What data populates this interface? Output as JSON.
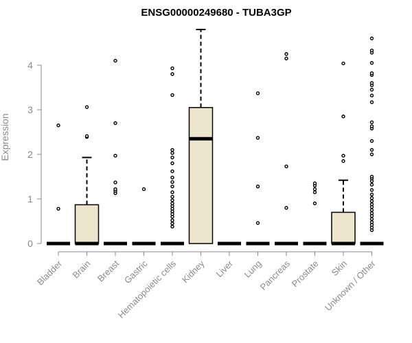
{
  "chart_data": {
    "type": "boxplot",
    "title": "ENSG00000249680 - TUBA3GP",
    "xlabel": "",
    "ylabel": "Expression",
    "ylim": [
      0,
      4.8
    ],
    "yticks": [
      0,
      1,
      2,
      3,
      4
    ],
    "box_fill": "#ede6cc",
    "grid": false,
    "categories": [
      "Bladder",
      "Brain",
      "Breast",
      "Gastric",
      "Hematopoietic cells",
      "Kidney",
      "Liver",
      "Lung",
      "Pancreas",
      "Prostate",
      "Skin",
      "Unknown / Other"
    ],
    "boxes": [
      {
        "q1": 0,
        "median": 0,
        "q3": 0,
        "whisker_low": 0,
        "whisker_high": 0,
        "outliers": [
          0.78,
          2.65
        ]
      },
      {
        "q1": 0,
        "median": 0,
        "q3": 0.87,
        "whisker_low": 0,
        "whisker_high": 1.93,
        "outliers": [
          2.39,
          2.41,
          3.06
        ]
      },
      {
        "q1": 0,
        "median": 0,
        "q3": 0,
        "whisker_low": 0,
        "whisker_high": 0,
        "outliers": [
          1.13,
          1.18,
          1.22,
          1.37,
          1.97,
          2.7,
          4.1
        ]
      },
      {
        "q1": 0,
        "median": 0,
        "q3": 0,
        "whisker_low": 0,
        "whisker_high": 0,
        "outliers": [
          1.22
        ]
      },
      {
        "q1": 0,
        "median": 0,
        "q3": 0,
        "whisker_low": 0,
        "whisker_high": 0,
        "outliers": [
          0.38,
          0.45,
          0.52,
          0.6,
          0.66,
          0.72,
          0.78,
          0.84,
          0.9,
          0.97,
          1.05,
          1.15,
          1.28,
          1.38,
          1.48,
          1.62,
          1.8,
          1.93,
          2.03,
          2.1,
          3.33,
          3.8,
          3.93
        ]
      },
      {
        "q1": 0,
        "median": 2.35,
        "q3": 3.05,
        "whisker_low": 0,
        "whisker_high": 4.8,
        "outliers": []
      },
      {
        "q1": 0,
        "median": 0,
        "q3": 0,
        "whisker_low": 0,
        "whisker_high": 0,
        "outliers": []
      },
      {
        "q1": 0,
        "median": 0,
        "q3": 0,
        "whisker_low": 0,
        "whisker_high": 0,
        "outliers": [
          0.46,
          1.28,
          2.37,
          3.37
        ]
      },
      {
        "q1": 0,
        "median": 0,
        "q3": 0,
        "whisker_low": 0,
        "whisker_high": 0,
        "outliers": [
          0.8,
          1.73,
          4.15,
          4.25
        ]
      },
      {
        "q1": 0,
        "median": 0,
        "q3": 0,
        "whisker_low": 0,
        "whisker_high": 0,
        "outliers": [
          0.9,
          1.15,
          1.22,
          1.3,
          1.35
        ]
      },
      {
        "q1": 0,
        "median": 0,
        "q3": 0.7,
        "whisker_low": 0,
        "whisker_high": 1.42,
        "outliers": [
          1.85,
          1.97,
          2.85,
          4.04
        ]
      },
      {
        "q1": 0,
        "median": 0,
        "q3": 0,
        "whisker_low": 0,
        "whisker_high": 0,
        "outliers": [
          0.3,
          0.36,
          0.42,
          0.48,
          0.55,
          0.62,
          0.68,
          0.75,
          0.82,
          0.88,
          0.95,
          1.02,
          1.1,
          1.2,
          1.32,
          1.4,
          1.46,
          1.5,
          2.0,
          2.1,
          2.3,
          2.58,
          2.63,
          2.72,
          3.17,
          3.32,
          3.45,
          3.55,
          3.6,
          3.78,
          3.82,
          4.05,
          4.28,
          4.33,
          4.6
        ]
      }
    ]
  }
}
